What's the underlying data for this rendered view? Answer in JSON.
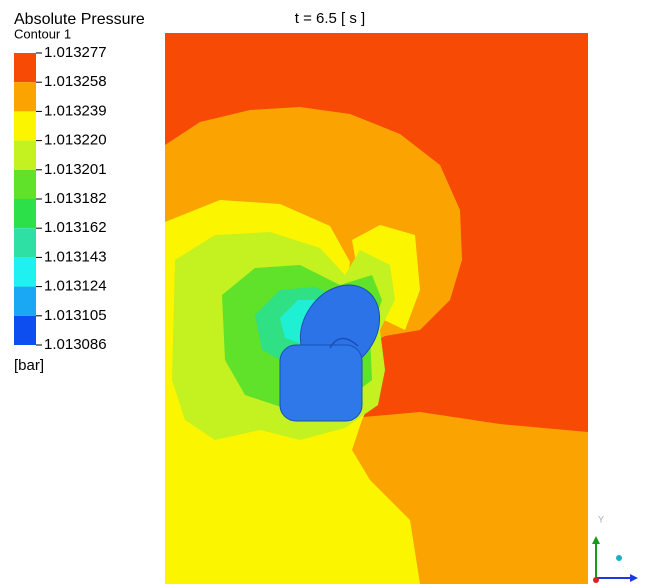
{
  "header": {
    "title": "Absolute Pressure",
    "subtitle": "Contour 1",
    "time": "t = 6.5 [ s ]"
  },
  "legend": {
    "levels": [
      "1.013277",
      "1.013258",
      "1.013239",
      "1.013220",
      "1.013201",
      "1.013182",
      "1.013162",
      "1.013143",
      "1.013124",
      "1.013105",
      "1.013086"
    ],
    "unit": "[bar]"
  },
  "axes": {
    "y": "Y"
  }
}
